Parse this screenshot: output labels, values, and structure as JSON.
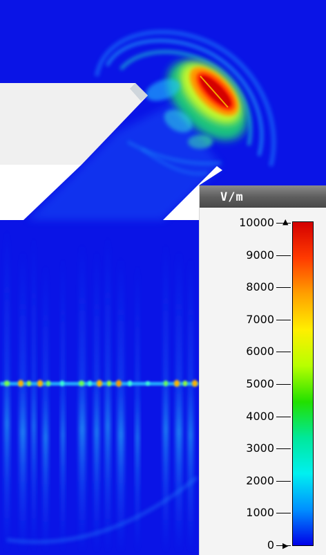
{
  "legend": {
    "unit": "V/m",
    "ticks": [
      "10000",
      "9000",
      "8000",
      "7000",
      "6000",
      "5000",
      "4000",
      "3000",
      "2000",
      "1000",
      "0"
    ],
    "max_marker": "▲",
    "min_marker": "▶"
  },
  "colors": {
    "background_field": "#0a14e6",
    "colorbar_stops": [
      "#d40000",
      "#ff3a00",
      "#ffa000",
      "#ffef00",
      "#b8ff00",
      "#22e000",
      "#00e89a",
      "#00f0f0",
      "#0090ff",
      "#0000e8"
    ],
    "geometry_fill": "#f0f0f0",
    "geometry_white": "#ffffff"
  }
}
